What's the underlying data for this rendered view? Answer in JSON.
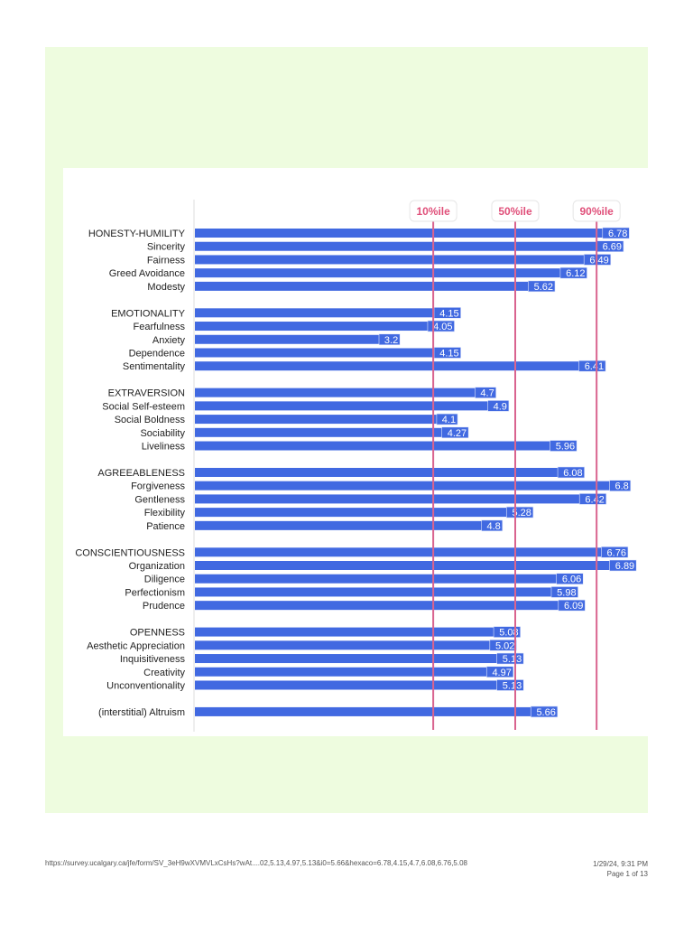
{
  "chart_data": {
    "type": "bar",
    "orientation": "horizontal",
    "xlim": [
      0,
      7
    ],
    "grid": false,
    "colors": {
      "bar": "#4169e1",
      "percentile_line": "#d9648f",
      "percentile_text": "#e0507a",
      "value_text": "#ffffff"
    },
    "reference_lines": [
      {
        "label": "10%ile",
        "value": 3.72
      },
      {
        "label": "50%ile",
        "value": 5.0
      },
      {
        "label": "90%ile",
        "value": 6.27
      }
    ],
    "groups": [
      {
        "items": [
          {
            "label": "HONESTY-HUMILITY",
            "value": 6.78
          },
          {
            "label": "Sincerity",
            "value": 6.69
          },
          {
            "label": "Fairness",
            "value": 6.49
          },
          {
            "label": "Greed Avoidance",
            "value": 6.12
          },
          {
            "label": "Modesty",
            "value": 5.62
          }
        ]
      },
      {
        "items": [
          {
            "label": "EMOTIONALITY",
            "value": 4.15
          },
          {
            "label": "Fearfulness",
            "value": 4.05
          },
          {
            "label": "Anxiety",
            "value": 3.2
          },
          {
            "label": "Dependence",
            "value": 4.15
          },
          {
            "label": "Sentimentality",
            "value": 6.41
          }
        ]
      },
      {
        "items": [
          {
            "label": "EXTRAVERSION",
            "value": 4.7
          },
          {
            "label": "Social Self-esteem",
            "value": 4.9
          },
          {
            "label": "Social Boldness",
            "value": 4.1
          },
          {
            "label": "Sociability",
            "value": 4.27
          },
          {
            "label": "Liveliness",
            "value": 5.96
          }
        ]
      },
      {
        "items": [
          {
            "label": "AGREEABLENESS",
            "value": 6.08
          },
          {
            "label": "Forgiveness",
            "value": 6.8
          },
          {
            "label": "Gentleness",
            "value": 6.42
          },
          {
            "label": "Flexibility",
            "value": 5.28
          },
          {
            "label": "Patience",
            "value": 4.8
          }
        ]
      },
      {
        "items": [
          {
            "label": "CONSCIENTIOUSNESS",
            "value": 6.76
          },
          {
            "label": "Organization",
            "value": 6.89
          },
          {
            "label": "Diligence",
            "value": 6.06
          },
          {
            "label": "Perfectionism",
            "value": 5.98
          },
          {
            "label": "Prudence",
            "value": 6.09
          }
        ]
      },
      {
        "items": [
          {
            "label": "OPENNESS",
            "value": 5.08
          },
          {
            "label": "Aesthetic Appreciation",
            "value": 5.02
          },
          {
            "label": "Inquisitiveness",
            "value": 5.13
          },
          {
            "label": "Creativity",
            "value": 4.97
          },
          {
            "label": "Unconventionality",
            "value": 5.13
          }
        ]
      },
      {
        "items": [
          {
            "label": "(interstitial) Altruism",
            "value": 5.66
          }
        ]
      }
    ]
  },
  "footer": {
    "url": "https://survey.ucalgary.ca/jfe/form/SV_3eH9wXVMVLxCsHs?wAt....02,5.13,4.97,5.13&i0=5.66&hexaco=6.78,4.15,4.7,6.08,6.76,5.08",
    "datetime": "1/29/24, 9:31 PM",
    "page": "Page 1 of 13"
  }
}
